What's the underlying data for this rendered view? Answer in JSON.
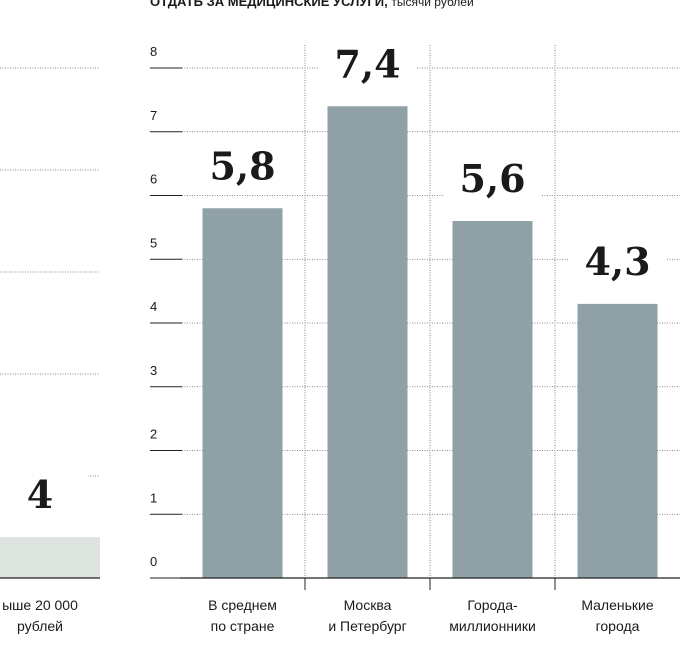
{
  "chart_data": [
    {
      "type": "bar",
      "categories": [
        [
          "ыше 20 000",
          "рублей"
        ]
      ],
      "values": [
        4
      ],
      "color": "#dde3df",
      "ylim": [
        0,
        50
      ],
      "yticks": [
        10,
        20,
        30,
        40,
        50
      ],
      "grid": true
    },
    {
      "type": "bar",
      "title": "ОТДАТЬ ЗА МЕДИЦИНСКИЕ УСЛУГИ,",
      "subtitle": "тысячи рублей",
      "categories": [
        [
          "В среднем",
          "по стране"
        ],
        [
          "Москва",
          "и Петербург"
        ],
        [
          "Города-",
          "миллионники"
        ],
        [
          "Маленькие",
          "города"
        ]
      ],
      "values": [
        5.8,
        7.4,
        5.6,
        4.3
      ],
      "value_labels": [
        "5,8",
        "7,4",
        "5,6",
        "4,3"
      ],
      "color": "#8fa1a6",
      "ylim": [
        0,
        8
      ],
      "yticks": [
        0,
        1,
        2,
        3,
        4,
        5,
        6,
        7,
        8
      ],
      "grid": true
    }
  ]
}
